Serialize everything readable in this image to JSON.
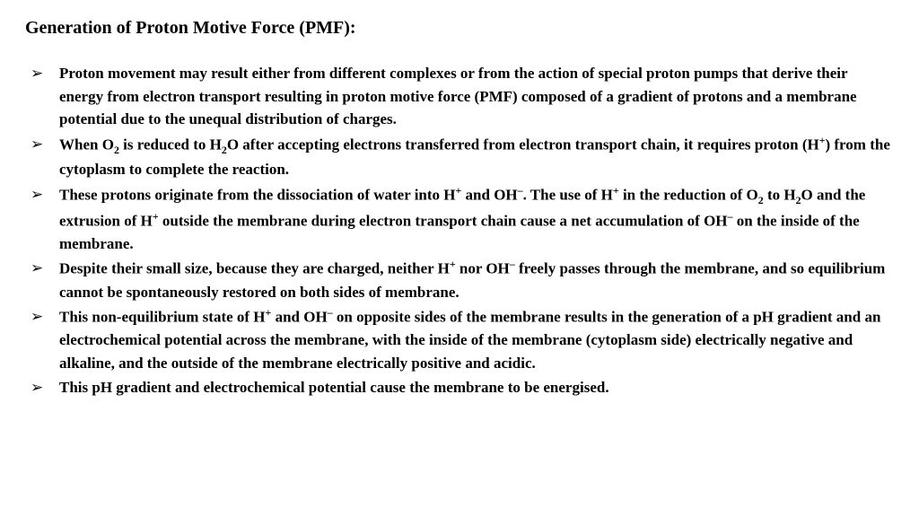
{
  "title": "Generation of Proton Motive Force (PMF):",
  "bullets": [
    "Proton movement may result either from different complexes or from the action of special proton pumps that derive their energy from electron transport resulting in proton motive force (PMF) composed of a gradient of protons and a membrane potential due to the unequal distribution of charges.",
    "When O<sub>2</sub> is reduced to H<sub>2</sub>O after accepting electrons transferred from electron transport chain, it requires proton (H<sup>+</sup>) from the cytoplasm to complete the reaction.",
    "These protons originate from the dissociation of water into H<sup>+</sup> and OH<sup>–</sup>. The use of H<sup>+</sup> in the reduction of O<sub>2</sub> to H<sub>2</sub>O and the extrusion of H<sup>+</sup> outside the membrane during electron transport chain cause a net accumulation of OH<sup>–</sup> on the inside of the membrane.",
    "Despite their small size, because they are charged, neither H<sup>+</sup> nor OH<sup>–</sup> freely passes through the membrane, and so equilibrium cannot be spontaneously restored on both sides of membrane.",
    "This non-equilibrium state of H<sup>+</sup> and OH<sup>–</sup> on opposite sides of the membrane results in the generation of a pH gradient and an electrochemical potential across the membrane, with the inside of the membrane (cytoplasm side) electrically negative and alkaline, and the outside of the membrane electrically positive and acidic.",
    "This pH gradient and electrochemical potential cause the membrane to be energised."
  ],
  "colors": {
    "background": "#ffffff",
    "text": "#000000"
  },
  "font": {
    "family": "Times New Roman",
    "title_size": 20,
    "body_size": 17,
    "weight": "bold"
  }
}
